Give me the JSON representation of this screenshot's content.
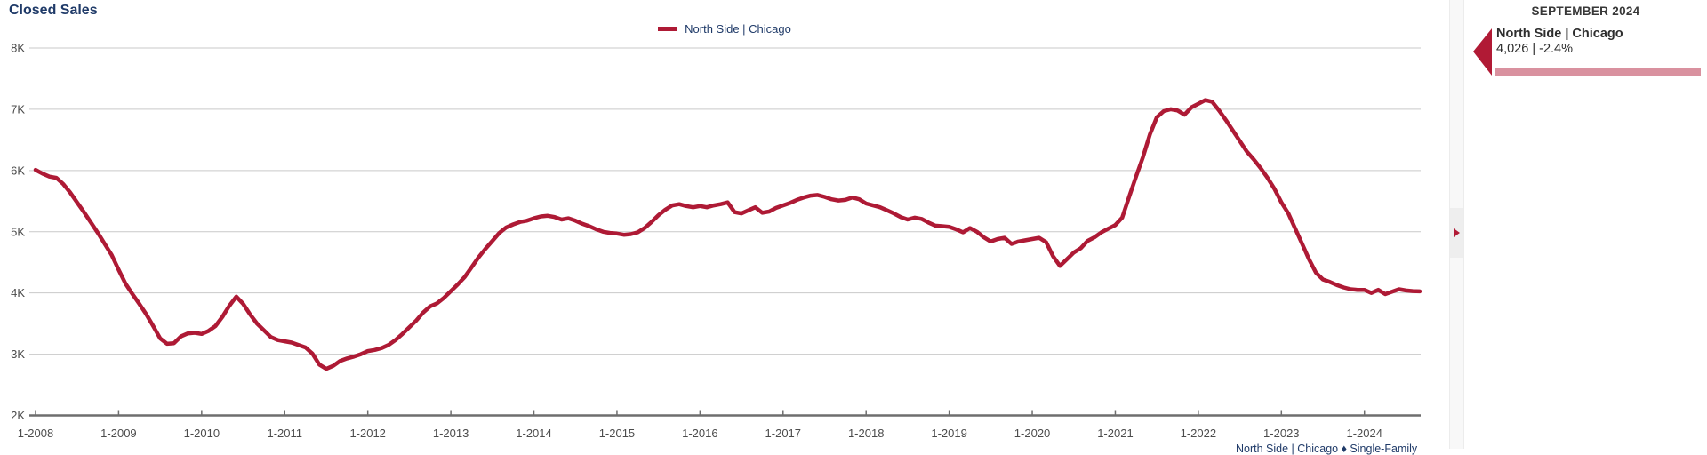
{
  "header": {
    "title": "Closed Sales"
  },
  "legend": {
    "series_label": "North Side | Chicago"
  },
  "footer": {
    "caption": "North Side | Chicago ♦ Single-Family"
  },
  "sidebar": {
    "month_header": "SEPTEMBER 2024",
    "entry": {
      "name": "North Side | Chicago",
      "value_line": "4,026 | -2.4%",
      "arrow_icon": "left-triangle",
      "bar_color": "#d9919f"
    },
    "splitter_arrow_icon": "right-triangle"
  },
  "colors": {
    "series": "#ae1a35",
    "navy_text": "#1f3a68",
    "axis_text": "#4c4c4c",
    "gridline": "#c9c9c9",
    "axis_line": "#6e6e6e",
    "accent_bar": "#d9919f"
  },
  "chart_data": {
    "type": "line",
    "title": "Closed Sales",
    "frequency": "monthly",
    "x_start": "2008-01",
    "x_end": "2024-09",
    "x_tick_labels": [
      "1-2008",
      "1-2009",
      "1-2010",
      "1-2011",
      "1-2012",
      "1-2013",
      "1-2014",
      "1-2015",
      "1-2016",
      "1-2017",
      "1-2018",
      "1-2019",
      "1-2020",
      "1-2021",
      "1-2022",
      "1-2023",
      "1-2024"
    ],
    "y_tick_labels": [
      "8K",
      "7K",
      "6K",
      "5K",
      "4K",
      "3K",
      "2K"
    ],
    "ylim": [
      2000,
      8000
    ],
    "grid": true,
    "legend_position": "top-center",
    "series": [
      {
        "name": "North Side | Chicago",
        "color": "#ae1a35",
        "values": [
          6010,
          5950,
          5900,
          5880,
          5780,
          5640,
          5480,
          5320,
          5150,
          4980,
          4800,
          4620,
          4380,
          4150,
          3980,
          3820,
          3650,
          3460,
          3260,
          3170,
          3180,
          3290,
          3340,
          3350,
          3330,
          3380,
          3460,
          3610,
          3790,
          3940,
          3820,
          3650,
          3500,
          3390,
          3280,
          3230,
          3210,
          3190,
          3150,
          3110,
          3010,
          2830,
          2760,
          2810,
          2890,
          2930,
          2960,
          3000,
          3050,
          3070,
          3100,
          3150,
          3230,
          3330,
          3440,
          3550,
          3680,
          3780,
          3830,
          3920,
          4030,
          4140,
          4260,
          4420,
          4580,
          4720,
          4850,
          4980,
          5070,
          5120,
          5160,
          5180,
          5220,
          5250,
          5260,
          5240,
          5200,
          5220,
          5180,
          5130,
          5090,
          5040,
          5000,
          4980,
          4970,
          4950,
          4960,
          4990,
          5060,
          5160,
          5270,
          5360,
          5430,
          5450,
          5420,
          5400,
          5420,
          5400,
          5430,
          5450,
          5480,
          5320,
          5300,
          5350,
          5400,
          5310,
          5330,
          5390,
          5430,
          5470,
          5520,
          5560,
          5590,
          5600,
          5570,
          5530,
          5510,
          5520,
          5560,
          5530,
          5460,
          5430,
          5400,
          5350,
          5300,
          5240,
          5200,
          5230,
          5210,
          5150,
          5100,
          5090,
          5080,
          5040,
          4990,
          5060,
          5000,
          4910,
          4840,
          4880,
          4900,
          4800,
          4840,
          4860,
          4880,
          4900,
          4830,
          4600,
          4440,
          4550,
          4660,
          4730,
          4850,
          4910,
          4990,
          5050,
          5110,
          5230,
          5570,
          5900,
          6220,
          6590,
          6870,
          6970,
          7000,
          6980,
          6910,
          7030,
          7090,
          7150,
          7120,
          6980,
          6820,
          6650,
          6480,
          6310,
          6180,
          6040,
          5880,
          5700,
          5480,
          5300,
          5050,
          4800,
          4550,
          4330,
          4220,
          4180,
          4130,
          4090,
          4060,
          4050,
          4050,
          4000,
          4050,
          3980,
          4020,
          4060,
          4040,
          4030,
          4026
        ]
      }
    ]
  }
}
